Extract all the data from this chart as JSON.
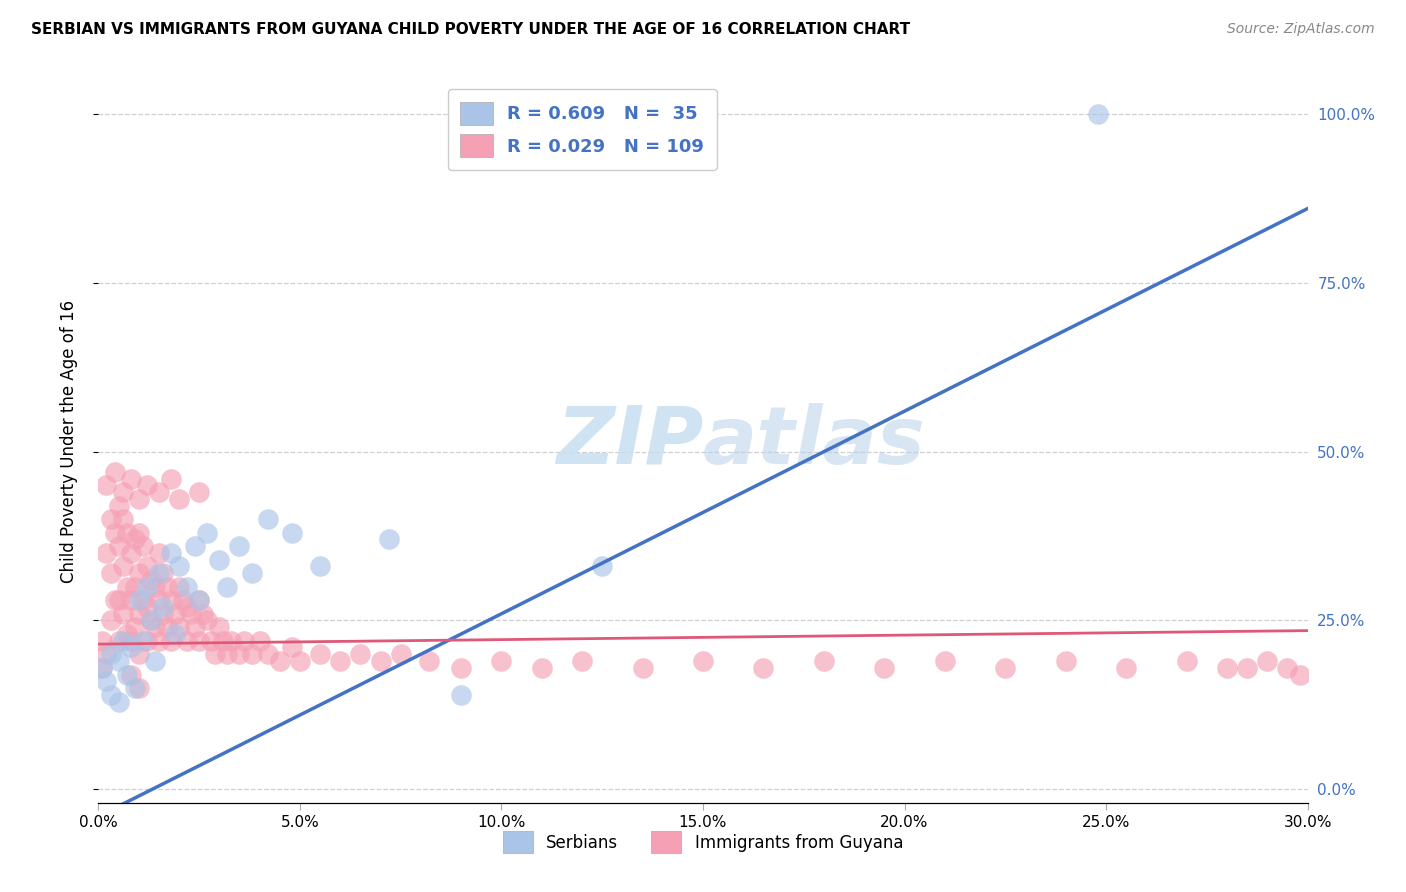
{
  "title": "SERBIAN VS IMMIGRANTS FROM GUYANA CHILD POVERTY UNDER THE AGE OF 16 CORRELATION CHART",
  "source": "Source: ZipAtlas.com",
  "ylabel": "Child Poverty Under the Age of 16",
  "xlim": [
    0.0,
    0.3
  ],
  "ylim": [
    -0.02,
    1.05
  ],
  "serbian_R": 0.609,
  "serbian_N": 35,
  "guyana_R": 0.029,
  "guyana_N": 109,
  "serbian_color": "#aac4e8",
  "guyana_color": "#f5a0b5",
  "serbian_line_color": "#4472c4",
  "guyana_line_color": "#e05878",
  "legend_text_color": "#4472c4",
  "watermark_color": "#c8dff0",
  "serbian_line_x0": 0.0,
  "serbian_line_y0": -0.04,
  "serbian_line_x1": 0.3,
  "serbian_line_y1": 0.86,
  "guyana_line_x0": 0.0,
  "guyana_line_y0": 0.215,
  "guyana_line_x1": 0.3,
  "guyana_line_y1": 0.235,
  "xticks": [
    0.0,
    0.05,
    0.1,
    0.15,
    0.2,
    0.25,
    0.3
  ],
  "xticklabels": [
    "0.0%",
    "5.0%",
    "10.0%",
    "15.0%",
    "20.0%",
    "25.0%",
    "30.0%"
  ],
  "yticks": [
    0.0,
    0.25,
    0.5,
    0.75,
    1.0
  ],
  "yticklabels": [
    "0.0%",
    "25.0%",
    "50.0%",
    "75.0%",
    "100.0%"
  ],
  "grid_color": "#d0d0d0",
  "serbian_x": [
    0.001,
    0.002,
    0.003,
    0.003,
    0.005,
    0.005,
    0.006,
    0.007,
    0.008,
    0.009,
    0.01,
    0.011,
    0.012,
    0.013,
    0.014,
    0.015,
    0.016,
    0.018,
    0.019,
    0.02,
    0.022,
    0.024,
    0.025,
    0.027,
    0.03,
    0.032,
    0.035,
    0.038,
    0.042,
    0.048,
    0.055,
    0.072,
    0.09,
    0.125,
    0.248
  ],
  "serbian_y": [
    0.18,
    0.16,
    0.2,
    0.14,
    0.19,
    0.13,
    0.22,
    0.17,
    0.21,
    0.15,
    0.28,
    0.22,
    0.3,
    0.25,
    0.19,
    0.32,
    0.27,
    0.35,
    0.23,
    0.33,
    0.3,
    0.36,
    0.28,
    0.38,
    0.34,
    0.3,
    0.36,
    0.32,
    0.4,
    0.38,
    0.33,
    0.37,
    0.14,
    0.33,
    1.0
  ],
  "guyana_x": [
    0.001,
    0.001,
    0.002,
    0.002,
    0.003,
    0.003,
    0.003,
    0.004,
    0.004,
    0.005,
    0.005,
    0.005,
    0.005,
    0.006,
    0.006,
    0.006,
    0.007,
    0.007,
    0.007,
    0.008,
    0.008,
    0.008,
    0.008,
    0.009,
    0.009,
    0.009,
    0.01,
    0.01,
    0.01,
    0.01,
    0.01,
    0.011,
    0.011,
    0.012,
    0.012,
    0.012,
    0.013,
    0.013,
    0.014,
    0.014,
    0.015,
    0.015,
    0.015,
    0.016,
    0.016,
    0.017,
    0.017,
    0.018,
    0.018,
    0.019,
    0.02,
    0.02,
    0.021,
    0.022,
    0.022,
    0.023,
    0.024,
    0.025,
    0.025,
    0.026,
    0.027,
    0.028,
    0.029,
    0.03,
    0.031,
    0.032,
    0.033,
    0.035,
    0.036,
    0.038,
    0.04,
    0.042,
    0.045,
    0.048,
    0.05,
    0.055,
    0.06,
    0.065,
    0.07,
    0.075,
    0.082,
    0.09,
    0.1,
    0.11,
    0.12,
    0.135,
    0.15,
    0.165,
    0.18,
    0.195,
    0.21,
    0.225,
    0.24,
    0.255,
    0.27,
    0.28,
    0.285,
    0.29,
    0.295,
    0.298,
    0.002,
    0.004,
    0.006,
    0.008,
    0.01,
    0.012,
    0.015,
    0.018,
    0.02,
    0.025
  ],
  "guyana_y": [
    0.22,
    0.18,
    0.35,
    0.2,
    0.4,
    0.32,
    0.25,
    0.38,
    0.28,
    0.42,
    0.36,
    0.28,
    0.22,
    0.4,
    0.33,
    0.26,
    0.38,
    0.3,
    0.23,
    0.35,
    0.28,
    0.22,
    0.17,
    0.37,
    0.3,
    0.24,
    0.38,
    0.32,
    0.26,
    0.2,
    0.15,
    0.36,
    0.28,
    0.33,
    0.27,
    0.22,
    0.31,
    0.25,
    0.3,
    0.24,
    0.35,
    0.28,
    0.22,
    0.32,
    0.26,
    0.3,
    0.24,
    0.28,
    0.22,
    0.26,
    0.3,
    0.24,
    0.28,
    0.27,
    0.22,
    0.26,
    0.24,
    0.28,
    0.22,
    0.26,
    0.25,
    0.22,
    0.2,
    0.24,
    0.22,
    0.2,
    0.22,
    0.2,
    0.22,
    0.2,
    0.22,
    0.2,
    0.19,
    0.21,
    0.19,
    0.2,
    0.19,
    0.2,
    0.19,
    0.2,
    0.19,
    0.18,
    0.19,
    0.18,
    0.19,
    0.18,
    0.19,
    0.18,
    0.19,
    0.18,
    0.19,
    0.18,
    0.19,
    0.18,
    0.19,
    0.18,
    0.18,
    0.19,
    0.18,
    0.17,
    0.45,
    0.47,
    0.44,
    0.46,
    0.43,
    0.45,
    0.44,
    0.46,
    0.43,
    0.44
  ]
}
